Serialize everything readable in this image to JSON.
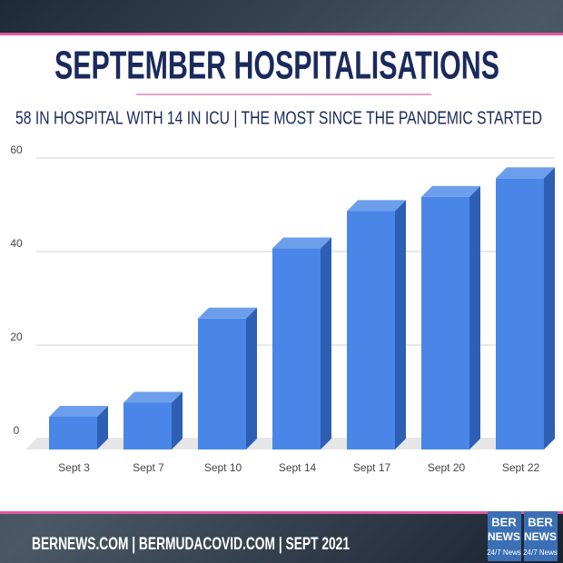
{
  "chart_data": {
    "type": "bar3d",
    "title": "SEPTEMBER HOSPITALISATIONS",
    "subtitle": "58 IN HOSPITAL WITH 14 IN ICU | THE MOST SINCE THE PANDEMIC STARTED",
    "categories": [
      "Sept 3",
      "Sept 7",
      "Sept 10",
      "Sept 14",
      "Sept 17",
      "Sept 20",
      "Sept 22"
    ],
    "values": [
      7,
      10,
      28,
      43,
      51,
      54,
      58
    ],
    "color": "#4a86e8",
    "ylim": [
      0,
      60
    ],
    "yticks": [
      0,
      20,
      40,
      60
    ],
    "grid": true
  },
  "footer": {
    "text": "BERNEWS.COM | BERMUDACOVID.COM | SEPT 2021",
    "logos": [
      {
        "top": "BER",
        "bottom": "NEWS",
        "tag": "24/7 News"
      },
      {
        "top": "BER",
        "bottom": "NEWS",
        "tag": "24/7 News"
      }
    ]
  }
}
